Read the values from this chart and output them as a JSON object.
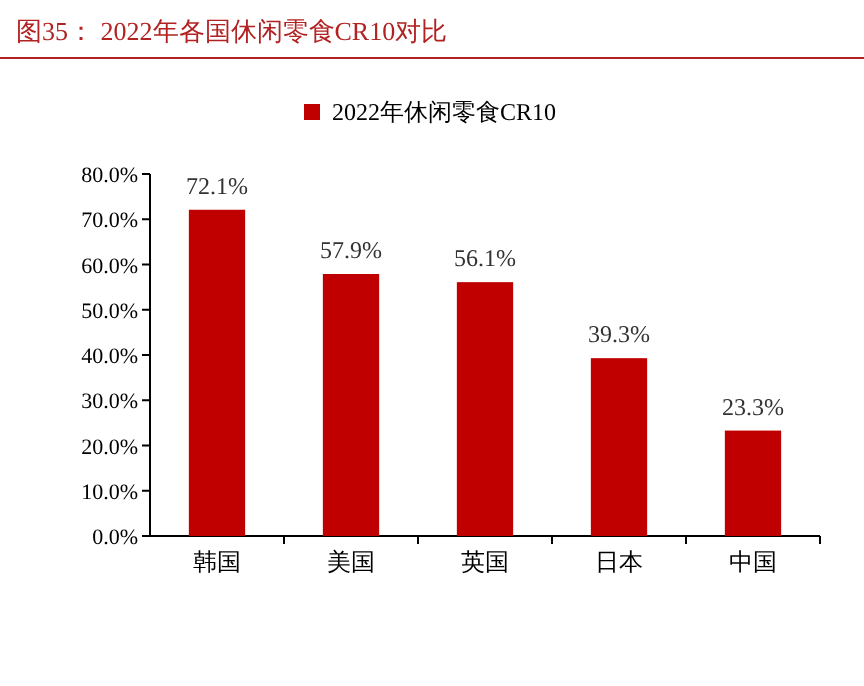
{
  "chart_data": {
    "type": "bar",
    "title": "图35：  2022年各国休闲零食CR10对比",
    "categories": [
      "韩国",
      "美国",
      "英国",
      "日本",
      "中国"
    ],
    "series": [
      {
        "name": "2022年休闲零食CR10",
        "color": "#c00000",
        "values": [
          72.1,
          57.9,
          56.1,
          39.3,
          23.3
        ],
        "value_labels": [
          "72.1%",
          "57.9%",
          "56.1%",
          "39.3%",
          "23.3%"
        ]
      }
    ],
    "ylim": [
      0,
      80
    ],
    "yticks": [
      {
        "value": 0,
        "label": "0.0%"
      },
      {
        "value": 10,
        "label": "10.0%"
      },
      {
        "value": 20,
        "label": "20.0%"
      },
      {
        "value": 30,
        "label": "30.0%"
      },
      {
        "value": 40,
        "label": "40.0%"
      },
      {
        "value": 50,
        "label": "50.0%"
      },
      {
        "value": 60,
        "label": "60.0%"
      },
      {
        "value": 70,
        "label": "70.0%"
      },
      {
        "value": 80,
        "label": "80.0%"
      }
    ],
    "legend": "top",
    "grid": false
  }
}
